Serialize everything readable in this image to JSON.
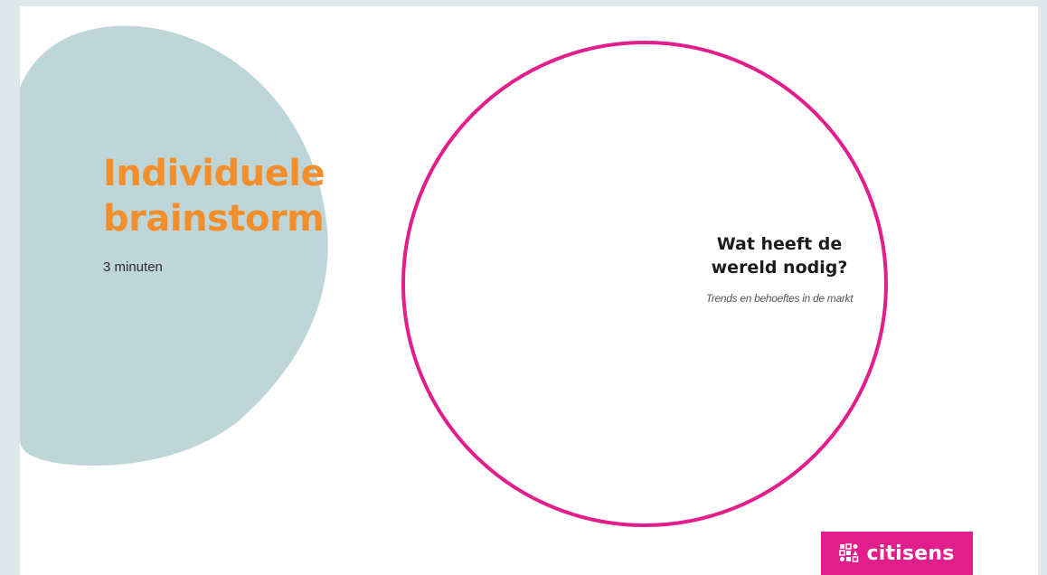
{
  "slide": {
    "title_line1": "Individuele",
    "title_line2": "brainstorm",
    "duration": "3 minuten",
    "question_line1": "Wat heeft de",
    "question_line2": "wereld nodig?",
    "question_subtitle": "Trends en behoeftes in de markt"
  },
  "logo": {
    "text": "citisens",
    "icon": "citisens-grid-icon"
  },
  "colors": {
    "background": "#dfe9ec",
    "blob": "#bed6d8",
    "title": "#f28f2c",
    "accent": "#e21e8c"
  }
}
